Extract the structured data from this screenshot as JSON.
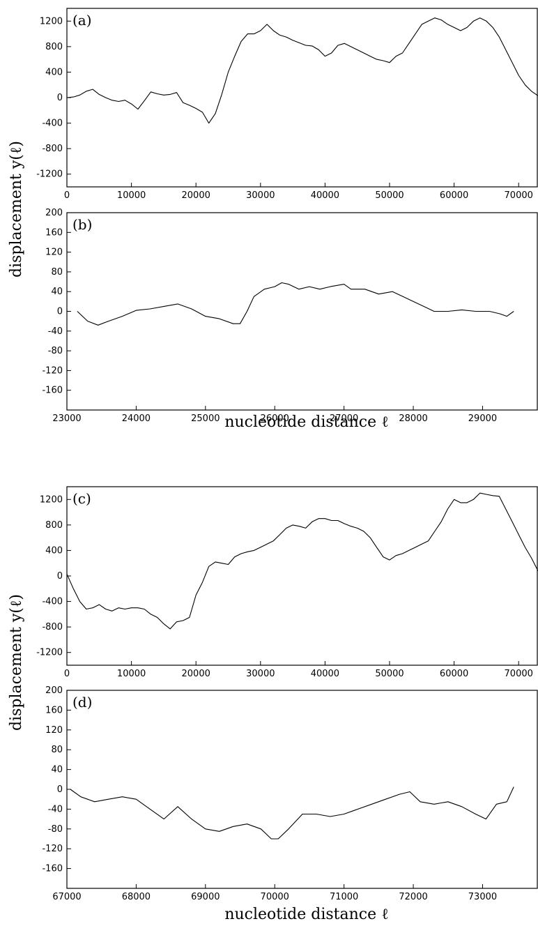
{
  "figure": {
    "ylabel_top": "displacement  y(ℓ)",
    "ylabel_bottom": "displacement  y(ℓ)",
    "xlabel_top": "nucleotide distance  ℓ",
    "xlabel_bottom": "nucleotide distance  ℓ"
  },
  "chart_data": [
    {
      "type": "line",
      "label": "(a)",
      "xlim": [
        0,
        73000
      ],
      "ylim": [
        -1400,
        1400
      ],
      "xticks": [
        0,
        10000,
        20000,
        30000,
        40000,
        50000,
        60000,
        70000
      ],
      "yticks": [
        1200,
        800,
        400,
        0,
        -400,
        -800,
        -1200
      ],
      "series": [
        {
          "x": [
            0,
            1000,
            2000,
            3000,
            4000,
            5000,
            6000,
            7000,
            8000,
            9000,
            10000,
            11000,
            12000,
            13000,
            14000,
            15000,
            16000,
            17000,
            18000,
            19000,
            20000,
            21000,
            22000,
            23000,
            24000,
            25000,
            26000,
            27000,
            28000,
            29000,
            30000,
            31000,
            32000,
            33000,
            34000,
            35000,
            36000,
            37000,
            38000,
            39000,
            40000,
            41000,
            42000,
            43000,
            44000,
            45000,
            46000,
            47000,
            48000,
            49000,
            50000,
            51000,
            52000,
            53000,
            54000,
            55000,
            56000,
            57000,
            58000,
            59000,
            60000,
            61000,
            62000,
            63000,
            64000,
            65000,
            66000,
            67000,
            68000,
            69000,
            70000,
            71000,
            72000,
            73000
          ],
          "y": [
            0,
            10,
            40,
            100,
            130,
            50,
            0,
            -40,
            -60,
            -40,
            -100,
            -180,
            -50,
            90,
            60,
            40,
            50,
            80,
            -80,
            -120,
            -170,
            -230,
            -400,
            -250,
            50,
            400,
            650,
            880,
            1000,
            1000,
            1050,
            1150,
            1050,
            980,
            950,
            900,
            860,
            820,
            810,
            750,
            650,
            700,
            820,
            850,
            800,
            750,
            700,
            650,
            600,
            580,
            550,
            650,
            700,
            850,
            1000,
            1150,
            1200,
            1250,
            1220,
            1150,
            1100,
            1050,
            1100,
            1200,
            1250,
            1200,
            1100,
            950,
            750,
            550,
            350,
            200,
            100,
            30
          ]
        }
      ]
    },
    {
      "type": "line",
      "label": "(b)",
      "xlim": [
        23000,
        29800
      ],
      "ylim": [
        -200,
        200
      ],
      "xticks": [
        23000,
        24000,
        25000,
        26000,
        27000,
        28000,
        29000
      ],
      "yticks": [
        200,
        160,
        120,
        80,
        40,
        0,
        -40,
        -80,
        -120,
        -160
      ],
      "series": [
        {
          "x": [
            23150,
            23300,
            23450,
            23600,
            23800,
            24000,
            24200,
            24400,
            24600,
            24800,
            25000,
            25200,
            25400,
            25500,
            25600,
            25700,
            25850,
            26000,
            26100,
            26200,
            26350,
            26500,
            26650,
            26800,
            27000,
            27100,
            27300,
            27500,
            27700,
            27850,
            28000,
            28150,
            28300,
            28500,
            28700,
            28900,
            29100,
            29250,
            29350,
            29450
          ],
          "y": [
            0,
            -20,
            -28,
            -20,
            -10,
            2,
            5,
            10,
            15,
            5,
            -10,
            -15,
            -25,
            -25,
            0,
            30,
            45,
            50,
            58,
            55,
            45,
            50,
            45,
            50,
            55,
            45,
            45,
            35,
            40,
            30,
            20,
            10,
            0,
            0,
            3,
            0,
            0,
            -5,
            -10,
            0
          ]
        }
      ]
    },
    {
      "type": "line",
      "label": "(c)",
      "xlim": [
        0,
        73000
      ],
      "ylim": [
        -1400,
        1400
      ],
      "xticks": [
        0,
        10000,
        20000,
        30000,
        40000,
        50000,
        60000,
        70000
      ],
      "yticks": [
        1200,
        800,
        400,
        0,
        -400,
        -800,
        -1200
      ],
      "series": [
        {
          "x": [
            0,
            1000,
            2000,
            3000,
            4000,
            5000,
            6000,
            7000,
            8000,
            9000,
            10000,
            11000,
            12000,
            13000,
            14000,
            15000,
            16000,
            17000,
            18000,
            19000,
            20000,
            21000,
            22000,
            23000,
            24000,
            25000,
            26000,
            27000,
            28000,
            29000,
            30000,
            31000,
            32000,
            33000,
            34000,
            35000,
            36000,
            37000,
            38000,
            39000,
            40000,
            41000,
            42000,
            43000,
            44000,
            45000,
            46000,
            47000,
            48000,
            49000,
            50000,
            51000,
            52000,
            53000,
            54000,
            55000,
            56000,
            57000,
            58000,
            59000,
            60000,
            61000,
            62000,
            63000,
            64000,
            65000,
            66000,
            67000,
            68000,
            69000,
            70000,
            71000,
            72000,
            73000
          ],
          "y": [
            30,
            -200,
            -400,
            -520,
            -500,
            -450,
            -520,
            -550,
            -500,
            -520,
            -500,
            -500,
            -520,
            -600,
            -650,
            -750,
            -830,
            -720,
            -700,
            -650,
            -300,
            -100,
            150,
            220,
            200,
            180,
            300,
            350,
            380,
            400,
            450,
            500,
            550,
            650,
            750,
            800,
            780,
            750,
            850,
            900,
            900,
            870,
            870,
            820,
            780,
            750,
            700,
            600,
            450,
            300,
            250,
            320,
            350,
            400,
            450,
            500,
            550,
            700,
            850,
            1050,
            1200,
            1150,
            1150,
            1200,
            1300,
            1280,
            1260,
            1250,
            1050,
            850,
            650,
            450,
            280,
            80
          ]
        }
      ]
    },
    {
      "type": "line",
      "label": "(d)",
      "xlim": [
        67000,
        73800
      ],
      "ylim": [
        -200,
        200
      ],
      "xticks": [
        67000,
        68000,
        69000,
        70000,
        71000,
        72000,
        73000
      ],
      "yticks": [
        200,
        160,
        120,
        80,
        40,
        0,
        -40,
        -80,
        -120,
        -160
      ],
      "series": [
        {
          "x": [
            67050,
            67200,
            67400,
            67600,
            67800,
            68000,
            68200,
            68400,
            68600,
            68800,
            69000,
            69200,
            69400,
            69600,
            69800,
            69950,
            70050,
            70200,
            70400,
            70600,
            70800,
            71000,
            71200,
            71400,
            71600,
            71800,
            71950,
            72100,
            72300,
            72500,
            72700,
            72900,
            73050,
            73200,
            73350,
            73450
          ],
          "y": [
            0,
            -15,
            -25,
            -20,
            -15,
            -20,
            -40,
            -60,
            -35,
            -60,
            -80,
            -85,
            -75,
            -70,
            -80,
            -100,
            -100,
            -80,
            -50,
            -50,
            -55,
            -50,
            -40,
            -30,
            -20,
            -10,
            -5,
            -25,
            -30,
            -25,
            -35,
            -50,
            -60,
            -30,
            -25,
            5
          ]
        }
      ]
    }
  ]
}
